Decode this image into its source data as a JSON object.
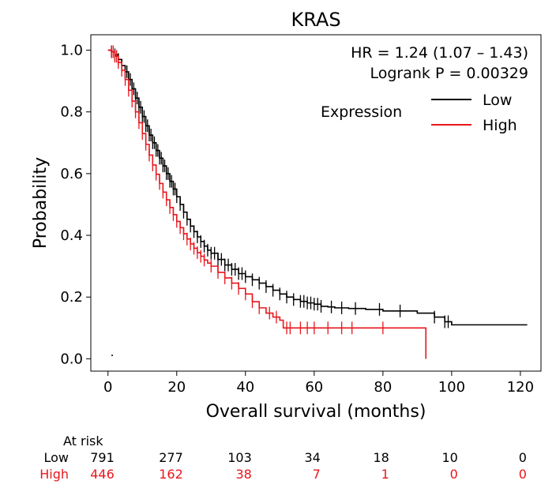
{
  "chart_data": {
    "type": "line",
    "title": "KRAS",
    "xlabel": "Overall survival (months)",
    "ylabel": "Probability",
    "xlim": [
      -5,
      126
    ],
    "ylim": [
      -0.04,
      1.05
    ],
    "xticks": [
      0,
      20,
      40,
      60,
      80,
      100,
      120
    ],
    "yticks": [
      0.0,
      0.2,
      0.4,
      0.6,
      0.8,
      1.0
    ],
    "xtick_labels": [
      "0",
      "20",
      "40",
      "60",
      "80",
      "100",
      "120"
    ],
    "ytick_labels": [
      "0.0",
      "0.2",
      "0.4",
      "0.6",
      "0.8",
      "1.0"
    ],
    "annotation": {
      "hr": "HR = 1.24 (1.07 – 1.43)",
      "logrank": "Logrank P = 0.00329"
    },
    "legend": {
      "title": "Expression",
      "placement": "top-right",
      "entries": [
        {
          "label": "Low",
          "color": "#000000"
        },
        {
          "label": "High",
          "color": "#e8161b"
        }
      ]
    },
    "series": [
      {
        "name": "Low",
        "color": "#000000",
        "x": [
          0,
          1,
          2,
          3,
          4,
          5,
          6,
          7,
          8,
          9,
          10,
          11,
          12,
          13,
          14,
          15,
          16,
          17,
          18,
          19,
          20,
          21,
          22,
          23,
          24,
          25,
          26,
          27,
          28,
          29,
          30,
          32,
          34,
          36,
          38,
          40,
          42,
          44,
          46,
          48,
          50,
          52,
          54,
          56,
          58,
          60,
          62,
          64,
          66,
          68,
          70,
          75,
          80,
          85,
          90,
          95,
          98,
          100,
          105,
          110,
          115,
          122
        ],
        "y": [
          1.0,
          0.995,
          0.985,
          0.97,
          0.95,
          0.93,
          0.905,
          0.875,
          0.845,
          0.815,
          0.785,
          0.755,
          0.725,
          0.7,
          0.675,
          0.65,
          0.625,
          0.6,
          0.575,
          0.55,
          0.525,
          0.5,
          0.475,
          0.452,
          0.43,
          0.412,
          0.395,
          0.38,
          0.365,
          0.352,
          0.342,
          0.322,
          0.304,
          0.29,
          0.276,
          0.266,
          0.256,
          0.245,
          0.234,
          0.222,
          0.21,
          0.2,
          0.192,
          0.186,
          0.181,
          0.177,
          0.17,
          0.168,
          0.165,
          0.165,
          0.163,
          0.16,
          0.155,
          0.155,
          0.148,
          0.135,
          0.12,
          0.11,
          0.11,
          0.11,
          0.11,
          0.11
        ],
        "censor_x": [
          1,
          2,
          3,
          4,
          5,
          5.5,
          6,
          6.5,
          7,
          7.5,
          8,
          8.5,
          9,
          9.5,
          10,
          10.5,
          11,
          11.5,
          12,
          12.5,
          13,
          13.5,
          14,
          14.5,
          15,
          15.5,
          16,
          16.5,
          17,
          17.5,
          18,
          18.5,
          19,
          19.5,
          20,
          21,
          22,
          23,
          24,
          25,
          26,
          27,
          28,
          29,
          30,
          31,
          32,
          33,
          34,
          35,
          36,
          37,
          38,
          39,
          40,
          42,
          44,
          46,
          48,
          50,
          52,
          54,
          56,
          57,
          58,
          59,
          60,
          61,
          62,
          65,
          68,
          72,
          79,
          85,
          95,
          98,
          99
        ],
        "at_risk": [
          "791",
          "277",
          "103",
          "34",
          "18",
          "10",
          "0"
        ]
      },
      {
        "name": "High",
        "color": "#e8161b",
        "x": [
          0,
          1,
          2,
          3,
          4,
          5,
          6,
          7,
          8,
          9,
          10,
          11,
          12,
          13,
          14,
          15,
          16,
          17,
          18,
          19,
          20,
          21,
          22,
          23,
          24,
          25,
          26,
          27,
          28,
          29,
          30,
          32,
          34,
          36,
          38,
          40,
          42,
          44,
          46,
          48,
          50,
          51,
          55,
          60,
          70,
          80,
          92.5,
          92.5
        ],
        "y": [
          1.0,
          0.995,
          0.98,
          0.96,
          0.935,
          0.905,
          0.87,
          0.835,
          0.8,
          0.765,
          0.73,
          0.695,
          0.66,
          0.628,
          0.598,
          0.568,
          0.54,
          0.515,
          0.49,
          0.467,
          0.445,
          0.425,
          0.405,
          0.388,
          0.372,
          0.358,
          0.344,
          0.332,
          0.32,
          0.31,
          0.3,
          0.28,
          0.262,
          0.245,
          0.228,
          0.21,
          0.185,
          0.165,
          0.148,
          0.135,
          0.125,
          0.1,
          0.1,
          0.1,
          0.1,
          0.1,
          0.1,
          0.0
        ],
        "censor_x": [
          1,
          1.5,
          2,
          2.5,
          3,
          4,
          5,
          6,
          7,
          8,
          9,
          10,
          11,
          12,
          13,
          14,
          15,
          16,
          17,
          18,
          19,
          20,
          21,
          22,
          23,
          24,
          25,
          26,
          27,
          28,
          30,
          32,
          34,
          36,
          38,
          40,
          42,
          44,
          47,
          49,
          52,
          53,
          56,
          58,
          60,
          64,
          68,
          71,
          80
        ],
        "at_risk": [
          "446",
          "162",
          "38",
          "7",
          "1",
          "0",
          "0"
        ]
      }
    ],
    "at_risk_table": {
      "header": "At risk",
      "times": [
        0,
        20,
        40,
        60,
        80,
        100,
        120
      ]
    }
  }
}
